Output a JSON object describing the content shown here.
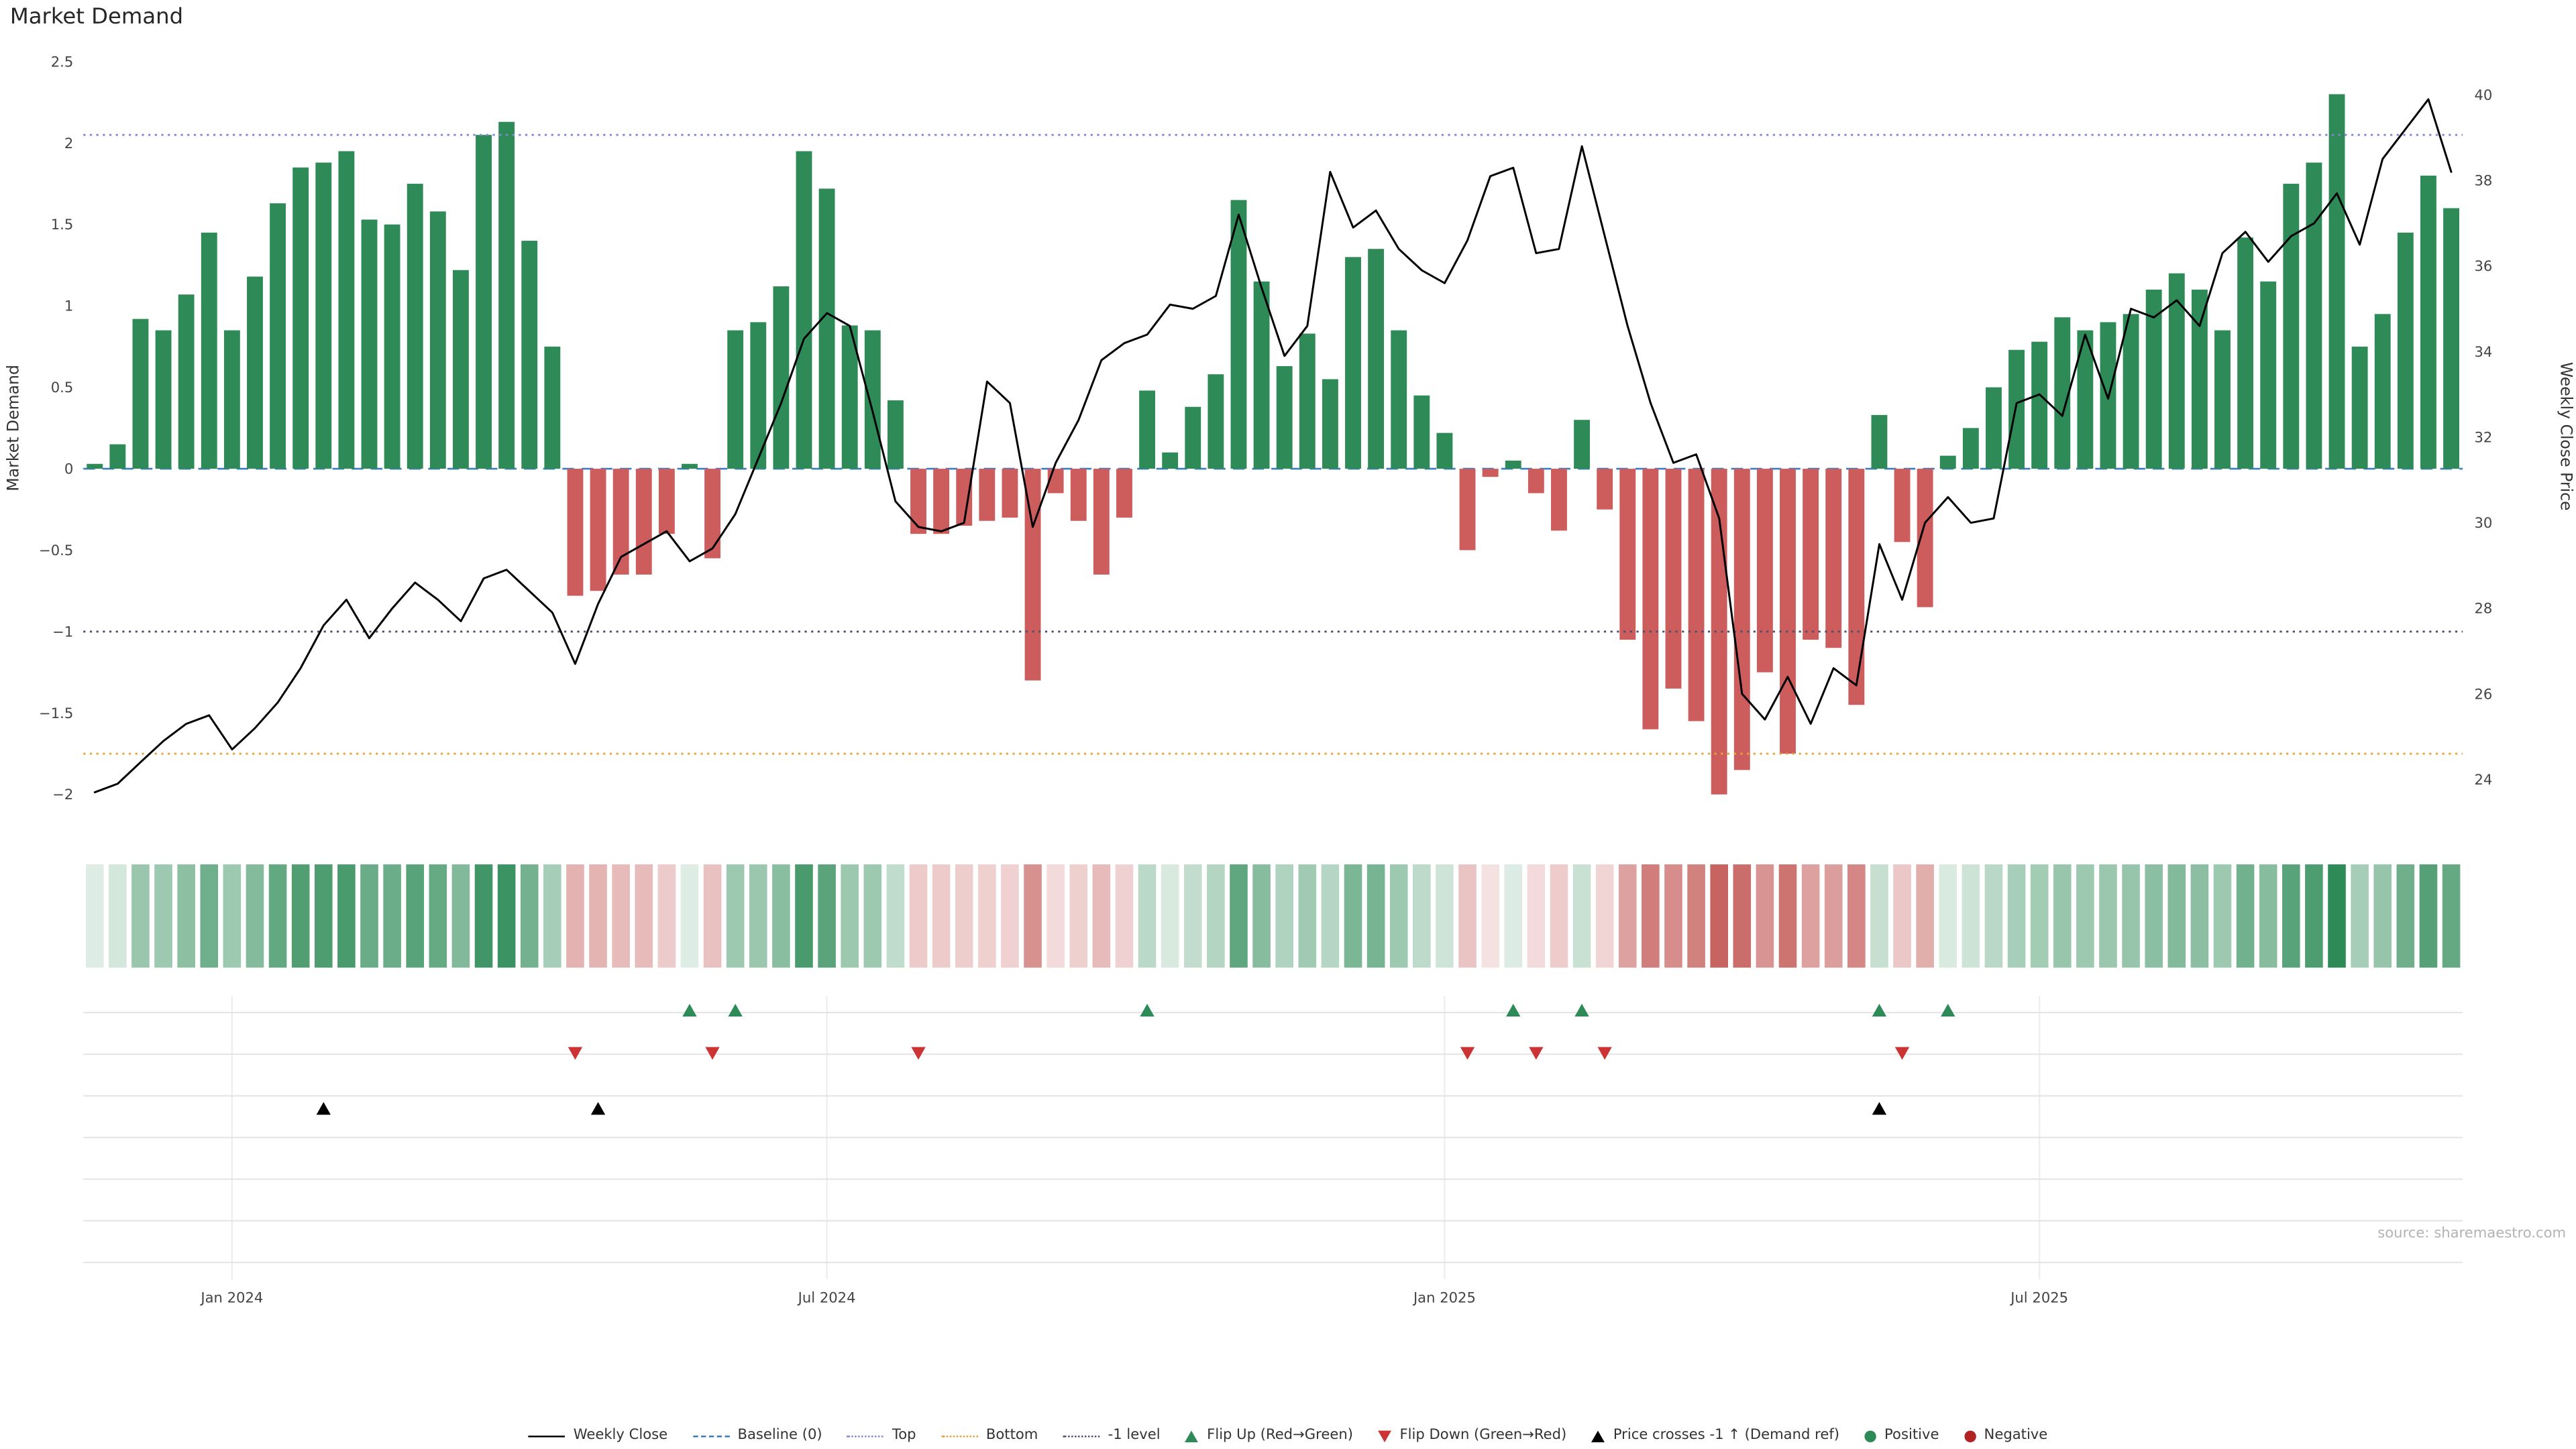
{
  "title": "Market Demand",
  "source": "source: sharemaestro.com",
  "colors": {
    "positive": "#2e8b57",
    "negative": "#cd5c5c",
    "price_line": "#000000",
    "baseline": "#3b7bbf",
    "top_line": "#8585d6",
    "bottom_line": "#e8a33c",
    "minus1_line": "#50506a",
    "flip_up": "#2e8b57",
    "flip_down": "#cc3333",
    "price_cross": "#000000",
    "panel_grid": "#e3e3e3",
    "vertical_grid": "#ededed",
    "tick_text": "#444444",
    "axis_label_text": "#333333"
  },
  "legend": [
    {
      "label": "Weekly Close",
      "type": "line",
      "color": "#000000"
    },
    {
      "label": "Baseline (0)",
      "type": "dashed",
      "color": "#3b7bbf"
    },
    {
      "label": "Top",
      "type": "dotted",
      "color": "#8585d6"
    },
    {
      "label": "Bottom",
      "type": "dotted",
      "color": "#e8a33c"
    },
    {
      "label": "-1 level",
      "type": "dotted",
      "color": "#50506a"
    },
    {
      "label": "Flip Up (Red→Green)",
      "type": "tri-up",
      "color": "#2e8b57"
    },
    {
      "label": "Flip Down (Green→Red)",
      "type": "tri-down",
      "color": "#cc3333"
    },
    {
      "label": "Price crosses -1 ↑ (Demand ref)",
      "type": "tri-up",
      "color": "#000000"
    },
    {
      "label": "Positive",
      "type": "dot",
      "color": "#2e8b57"
    },
    {
      "label": "Negative",
      "type": "dot",
      "color": "#b22222"
    }
  ],
  "chart_data": {
    "type": "bar+line",
    "title": "Market Demand",
    "left_axis": {
      "label": "Market Demand",
      "range": [
        -2,
        2.5
      ],
      "tick_values": [
        2.5,
        2.0,
        1.5,
        1.0,
        0.5,
        0.0,
        -0.5,
        -1.0,
        -1.5,
        -2.0
      ],
      "tick_labels": [
        "2.5",
        "2",
        "1.5",
        "1",
        "0.5",
        "0",
        "−0.5",
        "−1",
        "−1.5",
        "−2"
      ]
    },
    "right_axis": {
      "label": "Weekly Close Price",
      "range": [
        24,
        40
      ],
      "tick_values": [
        40,
        38,
        36,
        34,
        32,
        30,
        28,
        26,
        24
      ],
      "tick_labels": [
        "40",
        "38",
        "36",
        "34",
        "32",
        "30",
        "28",
        "26",
        "24"
      ]
    },
    "x_ticks": [
      {
        "index": 6,
        "label": "Jan 2024"
      },
      {
        "index": 32,
        "label": "Jul 2024"
      },
      {
        "index": 59,
        "label": "Jan 2025"
      },
      {
        "index": 85,
        "label": "Jul 2025"
      }
    ],
    "reference_lines": [
      {
        "name": "baseline",
        "label": "Baseline (0)",
        "value": 0,
        "style": "dashed",
        "color": "#3b7bbf",
        "layer": "under"
      },
      {
        "name": "top",
        "label": "Top",
        "value": 2.05,
        "style": "dotted",
        "color": "#8585d6",
        "layer": "over"
      },
      {
        "name": "minus1",
        "label": "-1 level",
        "value": -1,
        "style": "dotted",
        "color": "#50506a",
        "layer": "over"
      },
      {
        "name": "bottom",
        "label": "Bottom",
        "value": -1.75,
        "style": "dotted",
        "color": "#e8a33c",
        "layer": "over"
      }
    ],
    "demand": [
      0.03,
      0.15,
      0.92,
      0.85,
      1.07,
      1.45,
      0.85,
      1.18,
      1.63,
      1.85,
      1.88,
      1.95,
      1.53,
      1.5,
      1.75,
      1.58,
      1.22,
      2.05,
      2.13,
      1.4,
      0.75,
      -0.78,
      -0.75,
      -0.65,
      -0.65,
      -0.4,
      0.03,
      -0.55,
      0.85,
      0.9,
      1.12,
      1.95,
      1.72,
      0.88,
      0.85,
      0.42,
      -0.4,
      -0.4,
      -0.35,
      -0.32,
      -0.3,
      -1.3,
      -0.15,
      -0.32,
      -0.65,
      -0.3,
      0.48,
      0.1,
      0.38,
      0.58,
      1.65,
      1.15,
      0.63,
      0.83,
      0.55,
      1.3,
      1.35,
      0.85,
      0.45,
      0.22,
      -0.5,
      -0.05,
      0.05,
      -0.15,
      -0.38,
      0.3,
      -0.25,
      -1.05,
      -1.6,
      -1.35,
      -1.55,
      -2.0,
      -1.85,
      -1.25,
      -1.75,
      -1.05,
      -1.1,
      -1.45,
      0.33,
      -0.45,
      -0.85,
      0.08,
      0.25,
      0.5,
      0.73,
      0.78,
      0.93,
      0.85,
      0.9,
      0.95,
      1.1,
      1.2,
      1.1,
      0.85,
      1.42,
      1.15,
      1.75,
      1.88,
      2.3,
      0.75,
      0.95,
      1.45,
      1.8,
      1.6
    ],
    "price": [
      23.7,
      23.9,
      24.4,
      24.9,
      25.3,
      25.5,
      24.7,
      25.2,
      25.8,
      26.6,
      27.6,
      28.2,
      27.3,
      28.0,
      28.6,
      28.2,
      27.7,
      28.7,
      28.9,
      28.4,
      27.9,
      26.7,
      28.1,
      29.2,
      29.5,
      29.8,
      29.1,
      29.4,
      30.2,
      31.5,
      32.8,
      34.3,
      34.9,
      34.6,
      32.6,
      30.5,
      29.9,
      29.8,
      30.0,
      33.3,
      32.8,
      29.9,
      31.4,
      32.4,
      33.8,
      34.2,
      34.4,
      35.1,
      35.0,
      35.3,
      37.2,
      35.5,
      33.9,
      34.6,
      38.2,
      36.9,
      37.3,
      36.4,
      35.9,
      35.6,
      36.6,
      38.1,
      38.3,
      36.3,
      36.4,
      38.8,
      36.7,
      34.6,
      32.8,
      31.4,
      31.6,
      30.1,
      26.0,
      25.4,
      26.4,
      25.3,
      26.6,
      26.2,
      29.5,
      28.2,
      30.0,
      30.6,
      30.0,
      30.1,
      32.8,
      33.0,
      32.5,
      34.4,
      32.9,
      35.0,
      34.8,
      35.2,
      34.6,
      36.3,
      36.8,
      36.1,
      36.7,
      37.0,
      37.7,
      36.5,
      38.5,
      39.2,
      39.9,
      38.2
    ],
    "markers": {
      "flip_up": [
        26,
        28,
        46,
        62,
        65,
        78,
        81
      ],
      "flip_down": [
        21,
        27,
        36,
        60,
        63,
        66,
        79
      ],
      "price_cross": [
        10,
        22,
        78
      ]
    }
  }
}
